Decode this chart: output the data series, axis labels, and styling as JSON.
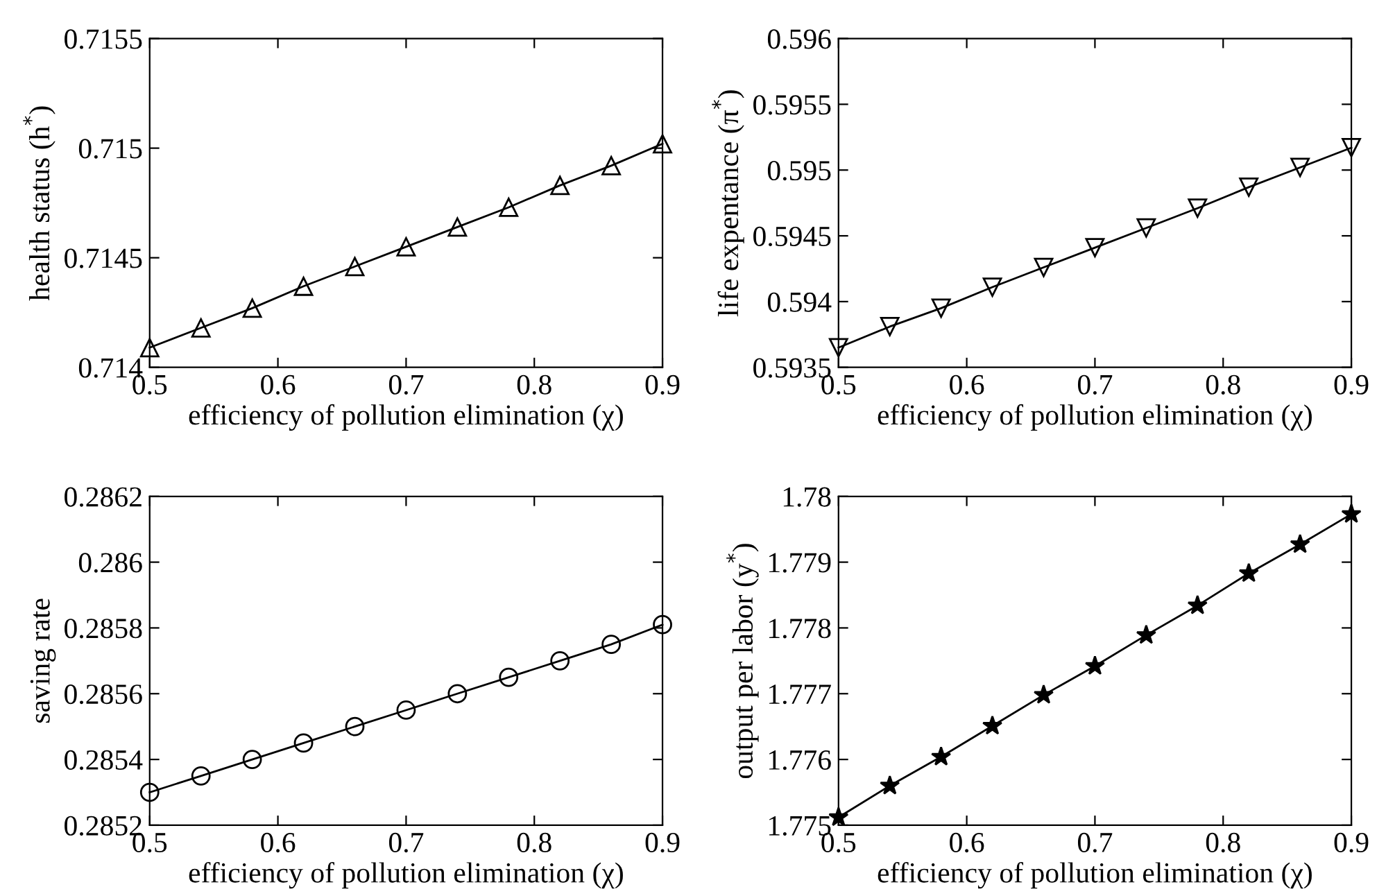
{
  "chart_data": [
    {
      "type": "line",
      "xlabel": "efficiency of pollution elimination (χ)",
      "ylabel": "health status (h$^{*}$)",
      "x": [
        0.5,
        0.54,
        0.58,
        0.62,
        0.66,
        0.7,
        0.74,
        0.78,
        0.82,
        0.86,
        0.9
      ],
      "series": [
        {
          "color": "#000000",
          "values": [
            0.71409,
            0.71418,
            0.71427,
            0.71437,
            0.71446,
            0.71455,
            0.71464,
            0.71473,
            0.71483,
            0.71492,
            0.71502
          ]
        }
      ],
      "marker": "triangle",
      "line_style": "solid",
      "xlim": [
        0.5,
        0.9
      ],
      "xticks": [
        0.5,
        0.6,
        0.7,
        0.8,
        0.9
      ],
      "ylim": [
        0.714,
        0.7155
      ],
      "yticks": [
        0.714,
        0.7145,
        0.715,
        0.7155
      ]
    },
    {
      "type": "line",
      "xlabel": "efficiency of pollution elimination (χ)",
      "ylabel": "life expentance (π$^{*}$)",
      "x": [
        0.5,
        0.54,
        0.58,
        0.62,
        0.66,
        0.7,
        0.74,
        0.78,
        0.82,
        0.86,
        0.9
      ],
      "series": [
        {
          "color": "#000000",
          "values": [
            0.59365,
            0.59381,
            0.59395,
            0.59411,
            0.59426,
            0.59441,
            0.59456,
            0.59471,
            0.59487,
            0.59502,
            0.59517
          ]
        }
      ],
      "marker": "triangle_down",
      "line_style": "solid",
      "xlim": [
        0.5,
        0.9
      ],
      "xticks": [
        0.5,
        0.6,
        0.7,
        0.8,
        0.9
      ],
      "ylim": [
        0.5935,
        0.596
      ],
      "yticks": [
        0.5935,
        0.594,
        0.5945,
        0.595,
        0.5955,
        0.596
      ]
    },
    {
      "type": "line",
      "xlabel": "efficiency of pollution elimination (χ)",
      "ylabel": "saving rate",
      "x": [
        0.5,
        0.54,
        0.58,
        0.62,
        0.66,
        0.7,
        0.74,
        0.78,
        0.82,
        0.86,
        0.9
      ],
      "series": [
        {
          "color": "#000000",
          "values": [
            0.2853,
            0.28535,
            0.2854,
            0.28545,
            0.2855,
            0.28555,
            0.2856,
            0.28565,
            0.2857,
            0.28575,
            0.28581
          ]
        }
      ],
      "marker": "circle",
      "line_style": "solid",
      "xlim": [
        0.5,
        0.9
      ],
      "xticks": [
        0.5,
        0.6,
        0.7,
        0.8,
        0.9
      ],
      "ylim": [
        0.2852,
        0.2862
      ],
      "yticks": [
        0.2852,
        0.2854,
        0.2856,
        0.2858,
        0.286,
        0.2862
      ]
    },
    {
      "type": "line",
      "xlabel": "efficiency of pollution elimination (χ)",
      "ylabel": "output per labor (y$^{*}$)",
      "x": [
        0.5,
        0.54,
        0.58,
        0.62,
        0.66,
        0.7,
        0.74,
        0.78,
        0.82,
        0.86,
        0.9
      ],
      "series": [
        {
          "color": "#000000",
          "values": [
            1.77512,
            1.7756,
            1.77604,
            1.77651,
            1.77698,
            1.77742,
            1.77789,
            1.77834,
            1.77883,
            1.77927,
            1.77973
          ]
        }
      ],
      "marker": "star",
      "line_style": "solid",
      "xlim": [
        0.5,
        0.9
      ],
      "xticks": [
        0.5,
        0.6,
        0.7,
        0.8,
        0.9
      ],
      "ylim": [
        1.775,
        1.78
      ],
      "yticks": [
        1.775,
        1.776,
        1.777,
        1.778,
        1.779,
        1.78
      ]
    }
  ]
}
